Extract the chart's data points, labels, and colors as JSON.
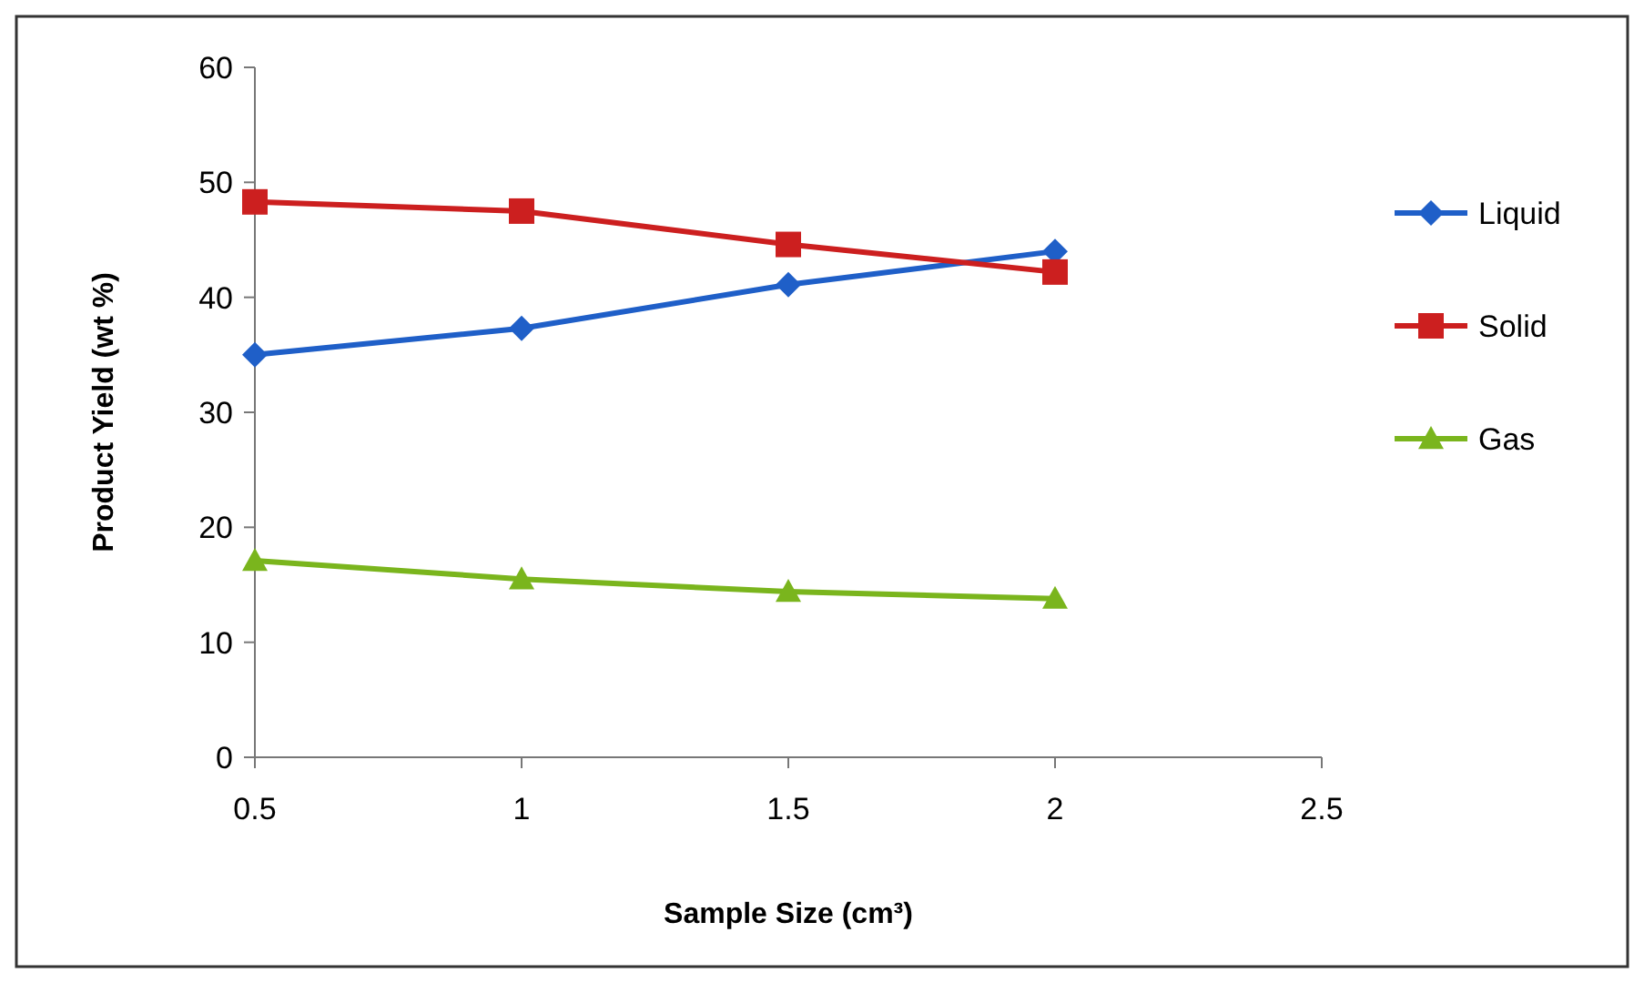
{
  "chart_data": {
    "type": "line",
    "xlabel": "Sample Size (cm³)",
    "ylabel": "Product Yield (wt %)",
    "x": [
      0.5,
      1,
      1.5,
      2
    ],
    "xlim": [
      0.5,
      2.5
    ],
    "xticks": [
      0.5,
      1,
      1.5,
      2,
      2.5
    ],
    "ylim": [
      0,
      60
    ],
    "yticks": [
      0,
      10,
      20,
      30,
      40,
      50,
      60
    ],
    "grid": false,
    "legend": "right",
    "line_style": "solid",
    "series": [
      {
        "name": "Liquid",
        "color": "#1f5fc8",
        "marker": "diamond",
        "values": [
          35.0,
          37.3,
          41.1,
          44.0
        ]
      },
      {
        "name": "Solid",
        "color": "#cc1f1f",
        "marker": "square",
        "values": [
          48.3,
          47.5,
          44.6,
          42.2
        ]
      },
      {
        "name": "Gas",
        "color": "#7ab51d",
        "marker": "triangle",
        "values": [
          17.1,
          15.5,
          14.4,
          13.8
        ]
      }
    ]
  }
}
